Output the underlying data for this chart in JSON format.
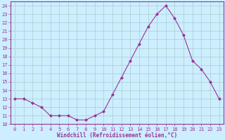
{
  "x": [
    0,
    1,
    2,
    3,
    4,
    5,
    6,
    7,
    8,
    9,
    10,
    11,
    12,
    13,
    14,
    15,
    16,
    17,
    18,
    19,
    20,
    21,
    22,
    23
  ],
  "y": [
    13,
    13,
    12.5,
    12,
    11,
    11,
    11,
    10.5,
    10.5,
    11,
    11.5,
    13.5,
    15.5,
    17.5,
    19.5,
    21.5,
    23,
    24,
    22.5,
    20.5,
    17.5,
    16.5,
    15,
    13
  ],
  "line_color": "#993399",
  "marker": "D",
  "marker_size": 2,
  "bg_color": "#cceeff",
  "grid_color": "#aacccc",
  "xlabel": "Windchill (Refroidissement éolien,°C)",
  "xlabel_color": "#993399",
  "tick_color": "#993399",
  "spine_color": "#993399",
  "ylim": [
    10,
    24.5
  ],
  "xlim": [
    -0.5,
    23.5
  ],
  "yticks": [
    10,
    11,
    12,
    13,
    14,
    15,
    16,
    17,
    18,
    19,
    20,
    21,
    22,
    23,
    24
  ],
  "xticks": [
    0,
    1,
    2,
    3,
    4,
    5,
    6,
    7,
    8,
    9,
    10,
    11,
    12,
    13,
    14,
    15,
    16,
    17,
    18,
    19,
    20,
    21,
    22,
    23
  ],
  "tick_fontsize": 5,
  "xlabel_fontsize": 5.5,
  "linewidth": 0.8
}
